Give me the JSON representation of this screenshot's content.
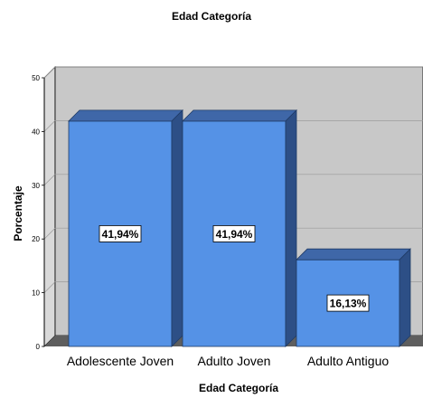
{
  "chart_data": {
    "type": "bar",
    "title": "Edad Categoría",
    "xlabel": "Edad Categoría",
    "ylabel": "Porcentaje",
    "categories": [
      "Adolescente Joven",
      "Adulto Joven",
      "Adulto Antiguo"
    ],
    "values": [
      41.94,
      41.94,
      16.13
    ],
    "data_labels": [
      "41,94%",
      "41,94%",
      "16,13%"
    ],
    "ylim": [
      0,
      50
    ],
    "yticks": [
      0,
      10,
      20,
      30,
      40,
      50
    ],
    "grid": true,
    "style": "3d",
    "colors": {
      "bar_front": "#5592e6",
      "bar_top": "#3f67a8",
      "bar_side": "#2d4f86",
      "plot_back": "#c8c8c8",
      "floor": "#5e5e5e",
      "side_wall": "#d9d9d9"
    }
  }
}
